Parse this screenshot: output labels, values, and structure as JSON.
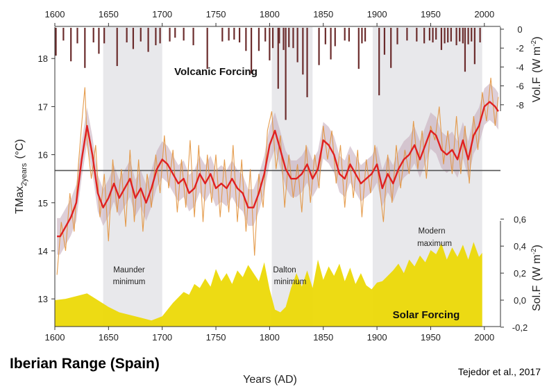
{
  "figure": {
    "region_label": "Iberian Range (Spain)",
    "citation": "Tejedor et al., 2017"
  },
  "chart_data": {
    "type": "line",
    "xlabel": "Years (AD)",
    "ylabel": "TMax",
    "ylabel_subscript": "2years",
    "ylabel_unit": "(°C)",
    "xlim": [
      1600,
      2015
    ],
    "ylim": [
      12.5,
      18.6
    ],
    "x_ticks": [
      1600,
      1650,
      1700,
      1750,
      1800,
      1850,
      1900,
      1950,
      2000
    ],
    "y_ticks": [
      13,
      14,
      15,
      16,
      17,
      18
    ],
    "reference_line": 15.67,
    "annotations": {
      "volcanic": "Volcanic Forcing",
      "solar": "Solar Forcing"
    },
    "periods": [
      {
        "start": 1645,
        "end": 1700,
        "name_line1": "Maunder",
        "name_line2": "minimum"
      },
      {
        "start": 1802,
        "end": 1840,
        "name_line1": "Dalton",
        "name_line2": "minimum"
      },
      {
        "start": 1896,
        "end": 1998,
        "name_line1": "Modern",
        "name_line2": "maximum"
      }
    ],
    "series": [
      {
        "name": "smoothed",
        "color": "#e02020",
        "x": [
          1602,
          1605,
          1610,
          1615,
          1620,
          1625,
          1630,
          1635,
          1640,
          1645,
          1650,
          1655,
          1660,
          1665,
          1670,
          1675,
          1680,
          1685,
          1690,
          1695,
          1700,
          1705,
          1710,
          1715,
          1720,
          1725,
          1730,
          1735,
          1740,
          1745,
          1750,
          1755,
          1760,
          1765,
          1770,
          1775,
          1780,
          1785,
          1790,
          1795,
          1800,
          1805,
          1810,
          1815,
          1820,
          1825,
          1830,
          1835,
          1840,
          1845,
          1850,
          1855,
          1860,
          1865,
          1870,
          1875,
          1880,
          1885,
          1890,
          1895,
          1900,
          1905,
          1910,
          1915,
          1920,
          1925,
          1930,
          1935,
          1940,
          1945,
          1950,
          1955,
          1960,
          1965,
          1970,
          1975,
          1980,
          1985,
          1990,
          1995,
          2000,
          2005,
          2010,
          2013
        ],
        "y": [
          14.3,
          14.3,
          14.5,
          14.7,
          15.0,
          15.9,
          16.6,
          16.0,
          15.2,
          14.9,
          15.1,
          15.4,
          15.1,
          15.3,
          15.5,
          15.1,
          15.3,
          15.0,
          15.3,
          15.7,
          15.9,
          15.8,
          15.6,
          15.4,
          15.5,
          15.2,
          15.3,
          15.6,
          15.4,
          15.6,
          15.3,
          15.4,
          15.3,
          15.5,
          15.3,
          15.2,
          14.9,
          14.9,
          15.2,
          15.6,
          16.2,
          16.5,
          16.1,
          15.7,
          15.5,
          15.5,
          15.6,
          15.8,
          15.5,
          15.7,
          16.3,
          16.2,
          16.0,
          15.6,
          15.5,
          15.8,
          15.6,
          15.4,
          15.5,
          15.6,
          15.8,
          15.3,
          15.6,
          15.4,
          15.7,
          15.9,
          16.0,
          16.2,
          15.9,
          16.2,
          16.5,
          16.4,
          16.1,
          16.0,
          16.1,
          15.9,
          16.3,
          15.9,
          16.4,
          16.6,
          17.0,
          17.1,
          17.0,
          16.9
        ]
      },
      {
        "name": "annual",
        "color": "#e2913a",
        "x": [
          1602,
          1606,
          1610,
          1614,
          1618,
          1622,
          1626,
          1628,
          1630,
          1634,
          1638,
          1642,
          1646,
          1650,
          1654,
          1658,
          1662,
          1666,
          1670,
          1674,
          1678,
          1682,
          1686,
          1690,
          1694,
          1698,
          1702,
          1706,
          1710,
          1714,
          1718,
          1722,
          1726,
          1730,
          1734,
          1738,
          1742,
          1746,
          1750,
          1754,
          1758,
          1762,
          1766,
          1770,
          1774,
          1778,
          1782,
          1786,
          1790,
          1794,
          1798,
          1802,
          1806,
          1810,
          1814,
          1818,
          1822,
          1826,
          1830,
          1834,
          1838,
          1842,
          1846,
          1850,
          1854,
          1858,
          1862,
          1866,
          1870,
          1874,
          1878,
          1882,
          1886,
          1890,
          1894,
          1898,
          1902,
          1906,
          1910,
          1914,
          1918,
          1922,
          1926,
          1930,
          1934,
          1938,
          1942,
          1946,
          1950,
          1954,
          1958,
          1962,
          1966,
          1970,
          1974,
          1978,
          1982,
          1986,
          1990,
          1994,
          1998,
          2002,
          2006,
          2010,
          2013
        ],
        "y": [
          13.5,
          14.6,
          14.0,
          15.2,
          14.4,
          15.8,
          16.9,
          17.4,
          16.3,
          15.5,
          16.2,
          14.7,
          15.6,
          14.2,
          15.9,
          14.8,
          15.7,
          14.5,
          16.1,
          14.6,
          15.9,
          14.4,
          15.6,
          14.9,
          16.0,
          15.2,
          16.4,
          15.3,
          16.1,
          14.8,
          15.9,
          14.9,
          16.3,
          14.7,
          16.2,
          14.6,
          16.0,
          15.0,
          16.0,
          14.7,
          15.9,
          14.8,
          16.2,
          14.6,
          15.9,
          14.4,
          15.7,
          13.9,
          15.6,
          14.9,
          16.5,
          16.9,
          15.7,
          16.4,
          14.9,
          16.0,
          15.1,
          15.8,
          14.8,
          16.2,
          15.0,
          16.0,
          15.3,
          16.6,
          15.9,
          16.5,
          15.4,
          16.2,
          14.9,
          16.0,
          15.1,
          16.1,
          14.7,
          15.9,
          15.2,
          16.2,
          15.4,
          14.6,
          16.0,
          15.0,
          16.2,
          15.3,
          16.1,
          15.6,
          16.7,
          15.7,
          16.5,
          15.5,
          16.6,
          16.3,
          17.0,
          15.8,
          16.5,
          15.6,
          16.8,
          15.6,
          16.6,
          15.4,
          16.8,
          16.1,
          17.3,
          16.7,
          17.6,
          16.6,
          17.2
        ]
      }
    ],
    "secondary_axes": [
      {
        "name": "volcanic",
        "label": "Vol.F",
        "unit": "(W m",
        "unit_sup": "-2",
        "unit_end": ")",
        "ticks": [
          0,
          -2,
          -4,
          -6,
          -8
        ],
        "tick_labels": [
          "0",
          "-2",
          "-4",
          "-6",
          "-8"
        ],
        "range": [
          -9.8,
          0
        ],
        "x": [
          1601,
          1608,
          1615,
          1621,
          1628,
          1636,
          1641,
          1646,
          1658,
          1667,
          1673,
          1680,
          1687,
          1694,
          1698,
          1707,
          1712,
          1720,
          1729,
          1742,
          1756,
          1762,
          1767,
          1772,
          1778,
          1783,
          1790,
          1796,
          1800,
          1803,
          1808,
          1809,
          1813,
          1815,
          1818,
          1822,
          1826,
          1831,
          1835,
          1846,
          1852,
          1857,
          1861,
          1870,
          1874,
          1883,
          1886,
          1889,
          1902,
          1907,
          1913,
          1919,
          1928,
          1937,
          1944,
          1949,
          1952,
          1955,
          1960,
          1963,
          1966,
          1969,
          1974,
          1977,
          1980,
          1982,
          1985,
          1988,
          1991,
          1996
        ],
        "values": [
          -2.8,
          -1.2,
          -3.4,
          -1.5,
          -4.1,
          -1.4,
          -2.6,
          -1.5,
          -3.9,
          -1.4,
          -2.1,
          -1.3,
          -2.4,
          -1.7,
          -1.5,
          -1.3,
          -0.9,
          -1.2,
          -1.7,
          -4.2,
          -1.3,
          -1.2,
          -1.1,
          -1.4,
          -2.3,
          -4.7,
          -2.3,
          -1.3,
          -3.3,
          -2.0,
          -6.3,
          -1.5,
          -2.2,
          -9.6,
          -1.9,
          -2.0,
          -3.5,
          -4.8,
          -7.2,
          -3.8,
          -1.6,
          -3.2,
          -1.8,
          -1.2,
          -1.3,
          -4.2,
          -1.5,
          -1.3,
          -7.0,
          -2.7,
          -4.1,
          -1.6,
          -1.2,
          -1.3,
          -1.5,
          -1.2,
          -1.4,
          -1.1,
          -2.2,
          -1.5,
          -1.4,
          -1.3,
          -1.7,
          -1.3,
          -1.5,
          -4.5,
          -1.6,
          -1.3,
          -3.7,
          -1.4
        ]
      },
      {
        "name": "solar",
        "label": "Sol.F",
        "unit": "(W m",
        "unit_sup": "-2",
        "unit_end": ")",
        "ticks": [
          0.6,
          0.4,
          0.2,
          0.0,
          -0.2
        ],
        "tick_labels": [
          "0,6",
          "0,4",
          "0,2",
          "0,0",
          "-0,2"
        ],
        "range": [
          -0.2,
          0.6
        ],
        "x": [
          1600,
          1610,
          1620,
          1630,
          1640,
          1650,
          1660,
          1670,
          1680,
          1690,
          1700,
          1710,
          1720,
          1725,
          1730,
          1735,
          1740,
          1745,
          1750,
          1755,
          1760,
          1765,
          1770,
          1775,
          1780,
          1785,
          1790,
          1795,
          1800,
          1805,
          1810,
          1815,
          1820,
          1825,
          1830,
          1835,
          1840,
          1845,
          1850,
          1855,
          1860,
          1865,
          1870,
          1875,
          1880,
          1885,
          1890,
          1895,
          1900,
          1905,
          1910,
          1915,
          1920,
          1925,
          1930,
          1935,
          1940,
          1945,
          1950,
          1955,
          1960,
          1965,
          1970,
          1975,
          1980,
          1985,
          1990,
          1995,
          1998
        ],
        "values": [
          0.0,
          0.01,
          0.03,
          0.05,
          0.0,
          -0.05,
          -0.09,
          -0.11,
          -0.13,
          -0.15,
          -0.12,
          -0.02,
          0.06,
          0.04,
          0.12,
          0.09,
          0.16,
          0.1,
          0.23,
          0.14,
          0.2,
          0.12,
          0.22,
          0.17,
          0.26,
          0.2,
          0.14,
          0.28,
          0.08,
          -0.07,
          -0.09,
          -0.05,
          0.09,
          0.2,
          0.1,
          0.22,
          0.09,
          0.3,
          0.15,
          0.25,
          0.18,
          0.27,
          0.14,
          0.24,
          0.12,
          0.2,
          0.11,
          0.08,
          0.13,
          0.14,
          0.18,
          0.22,
          0.27,
          0.2,
          0.3,
          0.25,
          0.33,
          0.28,
          0.37,
          0.34,
          0.42,
          0.3,
          0.39,
          0.32,
          0.41,
          0.3,
          0.43,
          0.32,
          0.35
        ]
      }
    ]
  },
  "colors": {
    "shade": "#e8e8eb",
    "smoothed": "#e02020",
    "annual": "#e2913a",
    "band": "#c3a8b8",
    "solar": "#ecd800",
    "volcanic": "#6b2c2c",
    "refline": "#555555"
  }
}
